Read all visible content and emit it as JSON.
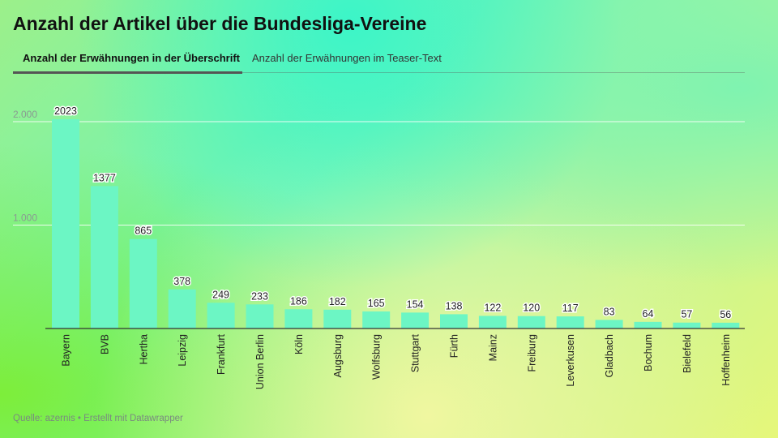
{
  "page": {
    "title": "Anzahl der Artikel über die Bundesliga-Vereine",
    "tabs": [
      {
        "label": "Anzahl der Erwähnungen in der Überschrift",
        "active": true
      },
      {
        "label": "Anzahl der Erwähnungen im Teaser-Text",
        "active": false
      }
    ],
    "source": "Quelle: azernis • Erstellt mit Datawrapper"
  },
  "colors": {
    "bar": "#6cf6c4",
    "axis": "#333333",
    "grid": "#ffffff",
    "label_text": "#222222",
    "label_bg": "#ffffff"
  },
  "chart_data": {
    "type": "bar",
    "title": "Anzahl der Artikel über die Bundesliga-Vereine",
    "categories": [
      "Bayern",
      "BVB",
      "Hertha",
      "Leipzig",
      "Frankfurt",
      "Union Berlin",
      "Köln",
      "Augsburg",
      "Wolfsburg",
      "Stuttgart",
      "Fürth",
      "Mainz",
      "Freiburg",
      "Leverkusen",
      "Gladbach",
      "Bochum",
      "Bielefeld",
      "Hoffenheim"
    ],
    "values": [
      2023,
      1377,
      865,
      378,
      249,
      233,
      186,
      182,
      165,
      154,
      138,
      122,
      120,
      117,
      83,
      64,
      57,
      56
    ],
    "value_labels": [
      "2023",
      "1377",
      "865",
      "378",
      "249",
      "233",
      "186",
      "182",
      "165",
      "154",
      "138",
      "122",
      "120",
      "117",
      "83",
      "64",
      "57",
      "56"
    ],
    "yticks": [
      1000,
      2000
    ],
    "ytick_labels": [
      "1.000",
      "2.000"
    ],
    "ylim": [
      0,
      2000
    ],
    "grid": true,
    "xlabel": "",
    "ylabel": ""
  }
}
